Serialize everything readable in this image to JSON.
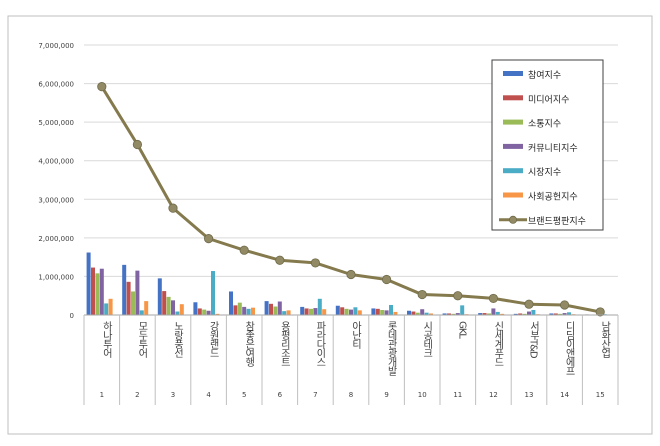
{
  "chart_data": {
    "type": "bar",
    "categories": [
      "하나투어",
      "모두투어",
      "노랑풍선",
      "강원랜드",
      "참좋은여행",
      "용평리조트",
      "파라다이스",
      "아난티",
      "롯데관광개발",
      "시공테크",
      "GKL",
      "신세계푸드",
      "서부T&D",
      "디딤이앤에프",
      "남화산업"
    ],
    "index_labels": [
      "1",
      "2",
      "3",
      "4",
      "5",
      "6",
      "7",
      "8",
      "9",
      "10",
      "11",
      "12",
      "13",
      "14",
      "15"
    ],
    "ylim": [
      0,
      7000000
    ],
    "yticks": [
      "0",
      "1,000,000",
      "2,000,000",
      "3,000,000",
      "4,000,000",
      "5,000,000",
      "6,000,000",
      "7,000,000"
    ],
    "grid": true,
    "legend_position": "top-right",
    "series": [
      {
        "name": "참여지수",
        "color": "#4472c4",
        "values": [
          1620000,
          1300000,
          950000,
          330000,
          610000,
          360000,
          210000,
          240000,
          170000,
          110000,
          40000,
          50000,
          30000,
          40000,
          15000
        ]
      },
      {
        "name": "미디어지수",
        "color": "#c0504d",
        "values": [
          1230000,
          860000,
          620000,
          170000,
          250000,
          290000,
          170000,
          200000,
          160000,
          90000,
          40000,
          50000,
          40000,
          40000,
          10000
        ]
      },
      {
        "name": "소통지수",
        "color": "#9bbb59",
        "values": [
          1080000,
          610000,
          470000,
          140000,
          320000,
          220000,
          160000,
          160000,
          130000,
          60000,
          30000,
          40000,
          30000,
          30000,
          10000
        ]
      },
      {
        "name": "커뮤니티지수",
        "color": "#8064a2",
        "values": [
          1200000,
          1150000,
          380000,
          110000,
          210000,
          350000,
          180000,
          140000,
          120000,
          150000,
          50000,
          170000,
          90000,
          50000,
          10000
        ]
      },
      {
        "name": "시장지수",
        "color": "#4bacc6",
        "values": [
          300000,
          120000,
          90000,
          1140000,
          160000,
          100000,
          420000,
          200000,
          260000,
          60000,
          250000,
          80000,
          130000,
          70000,
          20000
        ]
      },
      {
        "name": "사회공헌지수",
        "color": "#f79646",
        "values": [
          420000,
          360000,
          280000,
          30000,
          190000,
          120000,
          150000,
          120000,
          80000,
          40000,
          20000,
          30000,
          20000,
          20000,
          10000
        ]
      }
    ],
    "line": {
      "name": "브랜드평판지수",
      "color": "#847a4d",
      "marker_color": "#918a64",
      "values": [
        5920000,
        4420000,
        2770000,
        1980000,
        1680000,
        1420000,
        1350000,
        1050000,
        920000,
        530000,
        500000,
        430000,
        280000,
        260000,
        80000
      ]
    }
  }
}
